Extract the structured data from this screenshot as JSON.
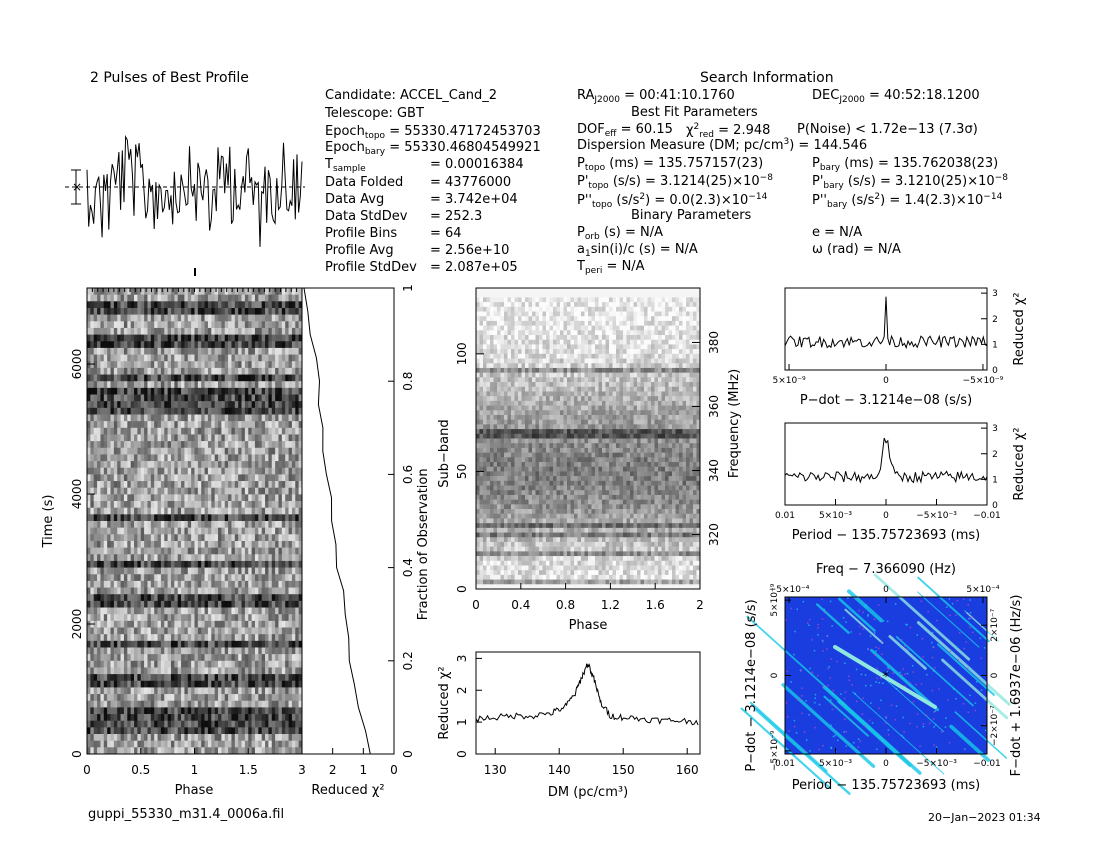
{
  "header": {
    "profile_title": "2 Pulses of Best Profile",
    "search_title": "Search Information",
    "best_fit_title": "Best Fit Parameters",
    "binary_title": "Binary Parameters"
  },
  "candidate_info": {
    "candidate": "Candidate:  ACCEL_Cand_2",
    "telescope": "Telescope:  GBT",
    "epoch_topo": "= 55330.47172453703",
    "epoch_bary": "= 55330.46804549921",
    "t_sample": "=   0.00016384",
    "data_folded_label": "Data Folded",
    "data_folded": "=   43776000",
    "data_avg_label": "Data Avg",
    "data_avg": "=   3.742e+04",
    "data_stddev_label": "Data StdDev",
    "data_stddev": "=   252.3",
    "profile_bins_label": "Profile Bins",
    "profile_bins": "=   64",
    "profile_avg_label": "Profile Avg",
    "profile_avg": "=   2.56e+10",
    "profile_stddev_label": "Profile StdDev",
    "profile_stddev": "=   2.087e+05"
  },
  "search_info": {
    "ra": "= 00:41:10.1760",
    "dec": "= 40:52:18.1200",
    "dof": "= 60.15",
    "chi_red": "= 2.948",
    "p_noise": "P(Noise) < 1.72e−13   (7.3σ)",
    "dm_line": "Dispersion Measure (DM; pc/cm",
    "dm_value": ") = 144.546",
    "p_topo": "(ms)  =   135.757157(23)",
    "p_bary": "(ms)  =   135.762038(23)",
    "pd_topo": "(s/s)  =   3.1214(25)×10",
    "pd_topo_exp": "−8",
    "pd_bary": "(s/s)  =   3.1210(25)×10",
    "pd_bary_exp": "−8",
    "pdd_topo": ") = 0.0(2.3)×10",
    "pdd_topo_exp": "−14",
    "pdd_bary": ")  =    1.4(2.3)×10",
    "pdd_bary_exp": "−14",
    "p_orb": "(s) = N/A",
    "asini": "sin(i)/c (s) = N/A",
    "t_peri": "= N/A",
    "e": "e = N/A",
    "omega": "ω (rad) = N/A"
  },
  "footer": {
    "filename": "guppi_55330_m31.4_0006a.fil",
    "timestamp": "20−Jan−2023 01:34"
  },
  "chart_data": [
    {
      "type": "line",
      "name": "pulse-profile",
      "title": "2 Pulses of Best Profile",
      "x": [
        0,
        2
      ],
      "note_bins": 64
    },
    {
      "type": "heatmap",
      "name": "time-vs-phase",
      "xlabel": "Phase",
      "ylabel": "Time (s)",
      "xticks": [
        "0",
        "0.5",
        "1",
        "1.5"
      ],
      "yticks": [
        "0",
        "2000",
        "4000",
        "6000"
      ],
      "xlim": [
        0,
        2
      ],
      "ylim": [
        0,
        7170
      ]
    },
    {
      "type": "line",
      "name": "chi2-vs-time",
      "xlabel": "Reduced χ²",
      "ylabel": "Fraction of Observation",
      "xticks": [
        "3",
        "2",
        "1",
        "0"
      ],
      "yticks": [
        "0",
        "0.2",
        "0.4",
        "0.6",
        "0.8",
        "1"
      ],
      "xlim": [
        3,
        0
      ],
      "ylim": [
        0,
        1
      ],
      "fraction": [
        0.0,
        0.05,
        0.1,
        0.15,
        0.2,
        0.25,
        0.3,
        0.35,
        0.4,
        0.45,
        0.5,
        0.55,
        0.6,
        0.65,
        0.7,
        0.75,
        0.8,
        0.85,
        0.9,
        0.95,
        1.0
      ],
      "chi2": [
        0.8,
        1.0,
        1.2,
        1.3,
        1.4,
        1.5,
        1.6,
        1.7,
        1.8,
        1.9,
        2.0,
        2.1,
        2.2,
        2.3,
        2.35,
        2.45,
        2.5,
        2.6,
        2.7,
        2.8,
        2.95
      ]
    },
    {
      "type": "heatmap",
      "name": "subband-vs-phase",
      "xlabel": "Phase",
      "ylabel": "Sub−band",
      "y2label": "Frequency (MHz)",
      "xticks": [
        "0",
        "0.4",
        "0.8",
        "1.2",
        "1.6",
        "2"
      ],
      "yticks": [
        "0",
        "50",
        "100"
      ],
      "y2ticks": [
        "320",
        "340",
        "360",
        "380"
      ],
      "xlim": [
        0,
        2
      ],
      "ylim": [
        0,
        128
      ]
    },
    {
      "type": "line",
      "name": "chi2-vs-dm",
      "xlabel": "DM (pc/cm³)",
      "ylabel": "Reduced χ²",
      "xticks": [
        "130",
        "140",
        "150",
        "160"
      ],
      "yticks": [
        "0",
        "1",
        "2",
        "3"
      ],
      "xlim": [
        127,
        162
      ],
      "ylim": [
        0,
        3.2
      ],
      "dm": [
        127,
        130,
        133,
        136,
        139,
        141,
        142.5,
        143.5,
        144.5,
        145.5,
        146.5,
        148,
        150,
        153,
        156,
        159,
        162
      ],
      "chi2": [
        1.1,
        1.15,
        1.2,
        1.2,
        1.3,
        1.5,
        1.9,
        2.4,
        2.85,
        2.3,
        1.6,
        1.2,
        1.15,
        1.1,
        1.05,
        1.05,
        1.0
      ]
    },
    {
      "type": "line",
      "name": "chi2-vs-pdot",
      "xlabel": "P−dot − 3.1214e−08 (s/s)",
      "ylabel": "Reduced χ²",
      "xticks": [
        "5×10⁻⁹",
        "0",
        "−5×10⁻⁹"
      ],
      "yticks": [
        "0",
        "1",
        "2",
        "3"
      ],
      "xlim": [
        5e-09,
        -5e-09
      ],
      "ylim": [
        0,
        3.2
      ],
      "peak": 2.9
    },
    {
      "type": "line",
      "name": "chi2-vs-period",
      "xlabel": "Period − 135.75723693 (ms)",
      "ylabel": "Reduced χ²",
      "xticks": [
        "0.01",
        "5×10⁻³",
        "0",
        "−5×10⁻³",
        "−0.01"
      ],
      "yticks": [
        "0",
        "1",
        "2",
        "3"
      ],
      "xlim": [
        0.01,
        -0.01
      ],
      "ylim": [
        0,
        3.2
      ],
      "peak": 2.6
    },
    {
      "type": "heatmap",
      "name": "pdot-vs-period",
      "title": "Freq − 7.366090 (Hz)",
      "xlabel": "Period − 135.75723693 (ms)",
      "ylabel": "P−dot − 3.1214e−08 (s/s)",
      "y2label": "F−dot + 1.6937e−06 (Hz/s)",
      "xticks": [
        "0.01",
        "5×10⁻³",
        "0",
        "−5×10⁻³",
        "−0.01"
      ],
      "x2ticks": [
        "−5×10⁻⁴",
        "0",
        "5×10⁻⁴"
      ],
      "yticks": [
        "5×10⁻⁹",
        "0",
        "−5×10⁻⁹"
      ],
      "y2ticks": [
        "2×10⁻⁷",
        "0",
        "−2×10⁻⁷"
      ],
      "colors": [
        "#1a3de0",
        "#16c9e8",
        "#8fe8e0"
      ]
    }
  ]
}
